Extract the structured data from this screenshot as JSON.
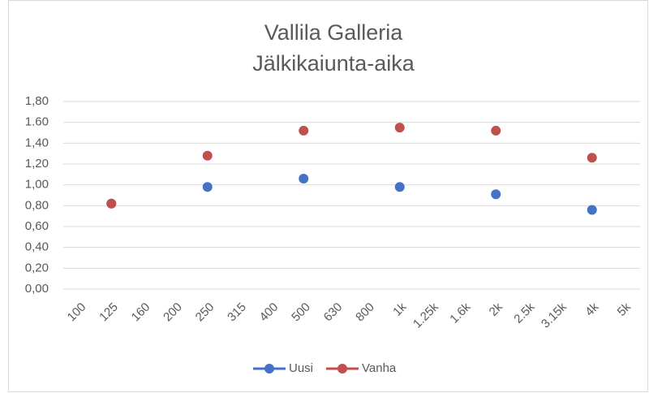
{
  "chart_data": {
    "type": "scatter-line",
    "title": "Vallila Galleria",
    "subtitle": "Jälkikaiunta-aika",
    "categories": [
      "100",
      "125",
      "160",
      "200",
      "250",
      "315",
      "400",
      "500",
      "630",
      "800",
      "1k",
      "1.25k",
      "1.6k",
      "2k",
      "2.5k",
      "3.15k",
      "4k",
      "5k"
    ],
    "series": [
      {
        "name": "Uusi",
        "color": "#4472c4",
        "values": [
          null,
          0.82,
          null,
          null,
          0.98,
          null,
          null,
          1.06,
          null,
          null,
          0.98,
          null,
          null,
          0.91,
          null,
          null,
          0.76,
          null
        ]
      },
      {
        "name": "Vanha",
        "color": "#c0504d",
        "values": [
          null,
          0.82,
          null,
          null,
          1.28,
          null,
          null,
          1.52,
          null,
          null,
          1.55,
          null,
          null,
          1.52,
          null,
          null,
          1.26,
          null
        ]
      }
    ],
    "ylim": [
      0,
      1.8
    ],
    "yticks": [
      {
        "value": 0,
        "label": "0,00"
      },
      {
        "value": 0.2,
        "label": "0,20"
      },
      {
        "value": 0.4,
        "label": "0,40"
      },
      {
        "value": 0.6,
        "label": "0,60"
      },
      {
        "value": 0.8,
        "label": "0,80"
      },
      {
        "value": 1.0,
        "label": "1,00"
      },
      {
        "value": 1.2,
        "label": "1,20"
      },
      {
        "value": 1.4,
        "label": "1,40"
      },
      {
        "value": 1.6,
        "label": "1.60"
      },
      {
        "value": 1.8,
        "label": "1,80"
      }
    ],
    "grid": true,
    "legend": "bottom"
  }
}
